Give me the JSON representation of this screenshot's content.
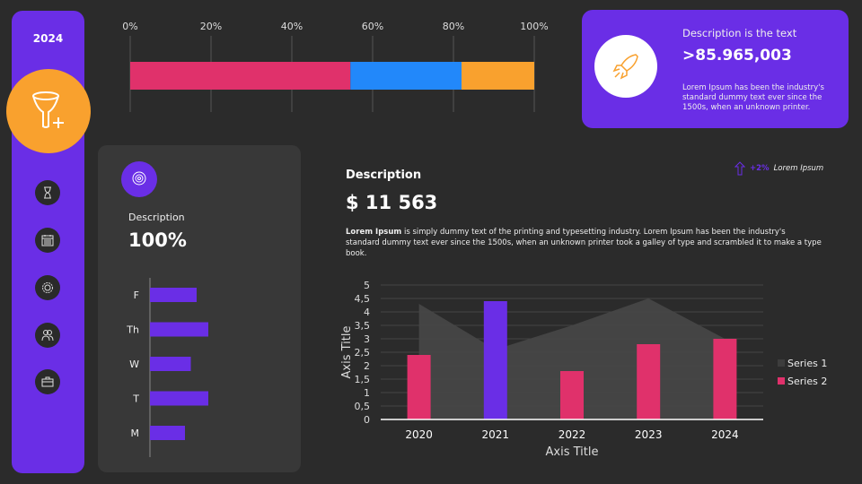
{
  "sidebar": {
    "year": "2024",
    "icons": [
      "funnel-plus-icon",
      "hourglass-icon",
      "calendar-icon",
      "gear-icon",
      "users-icon",
      "briefcase-icon"
    ]
  },
  "top_card": {
    "title": "Description is the text",
    "value": ">85.965,003",
    "text": "Lorem Ipsum has been the industry's standard dummy text ever since the 1500s, when an unknown printer.",
    "icon": "rocket-icon"
  },
  "left_card": {
    "icon": "target-icon",
    "label": "Description",
    "value": "100%"
  },
  "summary": {
    "title": "Description",
    "value": "$ 11 563",
    "text_bold": "Lorem Ipsum",
    "text": " is  simply dummy text of the printing and typesetting industry. Lorem Ipsum has been the industry's standard dummy text ever since the 1500s, when an unknown printer took a galley of type and scrambled it to make a type book.",
    "trend_pct": "+2%",
    "trend_label": "Lorem Ipsum"
  },
  "colors": {
    "purple": "#6a2ee6",
    "pink": "#e0316b",
    "blue": "#2288fa",
    "orange": "#f9a12e",
    "grey_area": "#474747"
  },
  "chart_data": [
    {
      "type": "bar",
      "orientation": "horizontal",
      "stacked": true,
      "xlim": [
        0,
        100
      ],
      "ticks": [
        "0%",
        "20%",
        "40%",
        "60%",
        "80%",
        "100%"
      ],
      "values": [
        54.5,
        27.5,
        18
      ],
      "colors": [
        "#e0316b",
        "#2288fa",
        "#f9a12e"
      ],
      "grid": true
    },
    {
      "type": "bar",
      "orientation": "horizontal",
      "categories": [
        "F",
        "Th",
        "W",
        "T",
        "M"
      ],
      "values": [
        80,
        100,
        70,
        100,
        60
      ],
      "color": "#6a2ee6"
    },
    {
      "type": "bar+area",
      "categories": [
        "2020",
        "2021",
        "2022",
        "2023",
        "2024"
      ],
      "xlabel": "Axis Title",
      "ylabel": "Axis Title",
      "ylim": [
        0,
        5
      ],
      "yticks": [
        "0",
        "0,5",
        "1",
        "1,5",
        "2",
        "2,5",
        "3",
        "3,5",
        "4",
        "4,5",
        "5"
      ],
      "grid": true,
      "legend": "right",
      "series": [
        {
          "name": "Series 1",
          "type": "area",
          "values": [
            4.3,
            2.6,
            3.5,
            4.5,
            3.0
          ],
          "color": "#474747"
        },
        {
          "name": "Series 2",
          "type": "bar",
          "values": [
            2.4,
            4.4,
            1.8,
            2.8,
            3.0
          ],
          "colors": [
            "#e0316b",
            "#6a2ee6",
            "#e0316b",
            "#e0316b",
            "#e0316b"
          ]
        }
      ]
    }
  ]
}
